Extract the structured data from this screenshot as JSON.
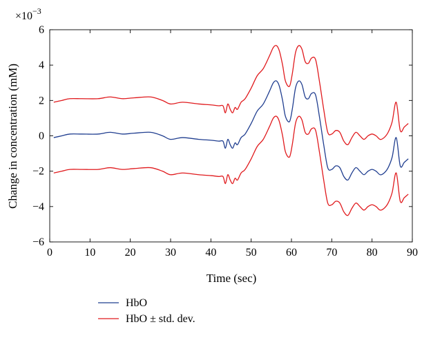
{
  "chart_data": {
    "type": "line",
    "title": "",
    "xlabel": "Time (sec)",
    "ylabel": "Change in concentration (mM)",
    "y_scale_label": "×10",
    "y_scale_exponent": "−3",
    "y_multiplier": 0.001,
    "xlim": [
      0,
      90
    ],
    "ylim": [
      -6,
      6
    ],
    "x_ticks": [
      0,
      10,
      20,
      30,
      40,
      50,
      60,
      70,
      80,
      90
    ],
    "y_ticks": [
      -6,
      -4,
      -2,
      0,
      2,
      4,
      6
    ],
    "x_tick_labels": [
      "0",
      "10",
      "20",
      "30",
      "40",
      "50",
      "60",
      "70",
      "80",
      "90"
    ],
    "y_tick_labels": [
      "−6",
      "−4",
      "−2",
      "0",
      "2",
      "4",
      "6"
    ],
    "grid": false,
    "legend_position": "bottom-left, below plot",
    "series": [
      {
        "name": "HbO",
        "color": "#1f3d8f",
        "x": [
          1,
          3,
          5,
          8,
          12,
          15,
          18,
          21,
          25,
          28,
          30,
          33,
          37,
          40,
          42,
          43,
          43.6,
          44.2,
          44.8,
          45.4,
          46,
          46.6,
          47.5,
          48.5,
          50,
          51.5,
          53,
          54.5,
          55.5,
          56.3,
          57,
          57.8,
          58.5,
          59.5,
          60.2,
          61,
          61.8,
          62.6,
          63.4,
          64.2,
          65,
          66,
          67,
          68,
          69,
          70,
          71,
          72,
          73,
          74,
          75,
          76,
          77,
          78,
          79,
          80,
          81,
          82,
          83,
          84,
          85,
          86,
          87,
          88,
          89
        ],
        "y": [
          -0.1,
          0,
          0.1,
          0.1,
          0.1,
          0.2,
          0.1,
          0.15,
          0.2,
          0,
          -0.2,
          -0.1,
          -0.2,
          -0.25,
          -0.3,
          -0.3,
          -0.7,
          -0.2,
          -0.5,
          -0.7,
          -0.4,
          -0.5,
          -0.1,
          0.1,
          0.7,
          1.4,
          1.8,
          2.5,
          3.0,
          3.1,
          2.8,
          2.0,
          1.1,
          0.8,
          1.5,
          2.7,
          3.1,
          2.9,
          2.2,
          2.1,
          2.4,
          2.3,
          1.0,
          -0.5,
          -1.8,
          -1.9,
          -1.7,
          -1.8,
          -2.3,
          -2.5,
          -2.1,
          -1.8,
          -2.0,
          -2.2,
          -2.0,
          -1.9,
          -2.0,
          -2.2,
          -2.1,
          -1.8,
          -1.2,
          -0.1,
          -1.7,
          -1.5,
          -1.3
        ]
      },
      {
        "name": "HbO ± std. dev.",
        "color": "#e0191c",
        "x": [
          1,
          3,
          5,
          8,
          12,
          15,
          18,
          21,
          25,
          28,
          30,
          33,
          37,
          40,
          42,
          43,
          43.6,
          44.2,
          44.8,
          45.4,
          46,
          46.6,
          47.5,
          48.5,
          50,
          51.5,
          53,
          54.5,
          55.5,
          56.3,
          57,
          57.8,
          58.5,
          59.5,
          60.2,
          61,
          61.8,
          62.6,
          63.4,
          64.2,
          65,
          66,
          67,
          68,
          69,
          70,
          71,
          72,
          73,
          74,
          75,
          76,
          77,
          78,
          79,
          80,
          81,
          82,
          83,
          84,
          85,
          86,
          87,
          88,
          89
        ],
        "y": [
          1.9,
          2.0,
          2.1,
          2.1,
          2.1,
          2.2,
          2.1,
          2.15,
          2.2,
          2.0,
          1.8,
          1.9,
          1.8,
          1.75,
          1.7,
          1.7,
          1.3,
          1.8,
          1.5,
          1.3,
          1.6,
          1.5,
          1.9,
          2.1,
          2.7,
          3.4,
          3.8,
          4.5,
          5.0,
          5.1,
          4.8,
          4.0,
          3.1,
          2.8,
          3.5,
          4.7,
          5.1,
          4.9,
          4.2,
          4.1,
          4.4,
          4.3,
          3.0,
          1.5,
          0.2,
          0.1,
          0.3,
          0.2,
          -0.3,
          -0.5,
          -0.1,
          0.2,
          0.0,
          -0.2,
          0.0,
          0.1,
          0.0,
          -0.2,
          -0.1,
          0.2,
          0.8,
          1.9,
          0.3,
          0.5,
          0.7
        ]
      },
      {
        "name": "",
        "color": "#e0191c",
        "x": [
          1,
          3,
          5,
          8,
          12,
          15,
          18,
          21,
          25,
          28,
          30,
          33,
          37,
          40,
          42,
          43,
          43.6,
          44.2,
          44.8,
          45.4,
          46,
          46.6,
          47.5,
          48.5,
          50,
          51.5,
          53,
          54.5,
          55.5,
          56.3,
          57,
          57.8,
          58.5,
          59.5,
          60.2,
          61,
          61.8,
          62.6,
          63.4,
          64.2,
          65,
          66,
          67,
          68,
          69,
          70,
          71,
          72,
          73,
          74,
          75,
          76,
          77,
          78,
          79,
          80,
          81,
          82,
          83,
          84,
          85,
          86,
          87,
          88,
          89
        ],
        "y": [
          -2.1,
          -2.0,
          -1.9,
          -1.9,
          -1.9,
          -1.8,
          -1.9,
          -1.85,
          -1.8,
          -2.0,
          -2.2,
          -2.1,
          -2.2,
          -2.25,
          -2.3,
          -2.3,
          -2.7,
          -2.2,
          -2.5,
          -2.7,
          -2.4,
          -2.5,
          -2.1,
          -1.9,
          -1.3,
          -0.6,
          -0.2,
          0.5,
          1.0,
          1.1,
          0.8,
          0.0,
          -0.9,
          -1.2,
          -0.5,
          0.7,
          1.1,
          0.9,
          0.2,
          0.1,
          0.4,
          0.3,
          -1.0,
          -2.5,
          -3.8,
          -3.9,
          -3.7,
          -3.8,
          -4.3,
          -4.5,
          -4.1,
          -3.8,
          -4.0,
          -4.2,
          -4.0,
          -3.9,
          -4.0,
          -4.2,
          -4.1,
          -3.8,
          -3.2,
          -2.1,
          -3.7,
          -3.5,
          -3.3
        ]
      }
    ]
  },
  "legend": {
    "items": [
      {
        "label": "HbO",
        "color": "#1f3d8f"
      },
      {
        "label": "HbO ± std. dev.",
        "color": "#e0191c"
      }
    ]
  }
}
